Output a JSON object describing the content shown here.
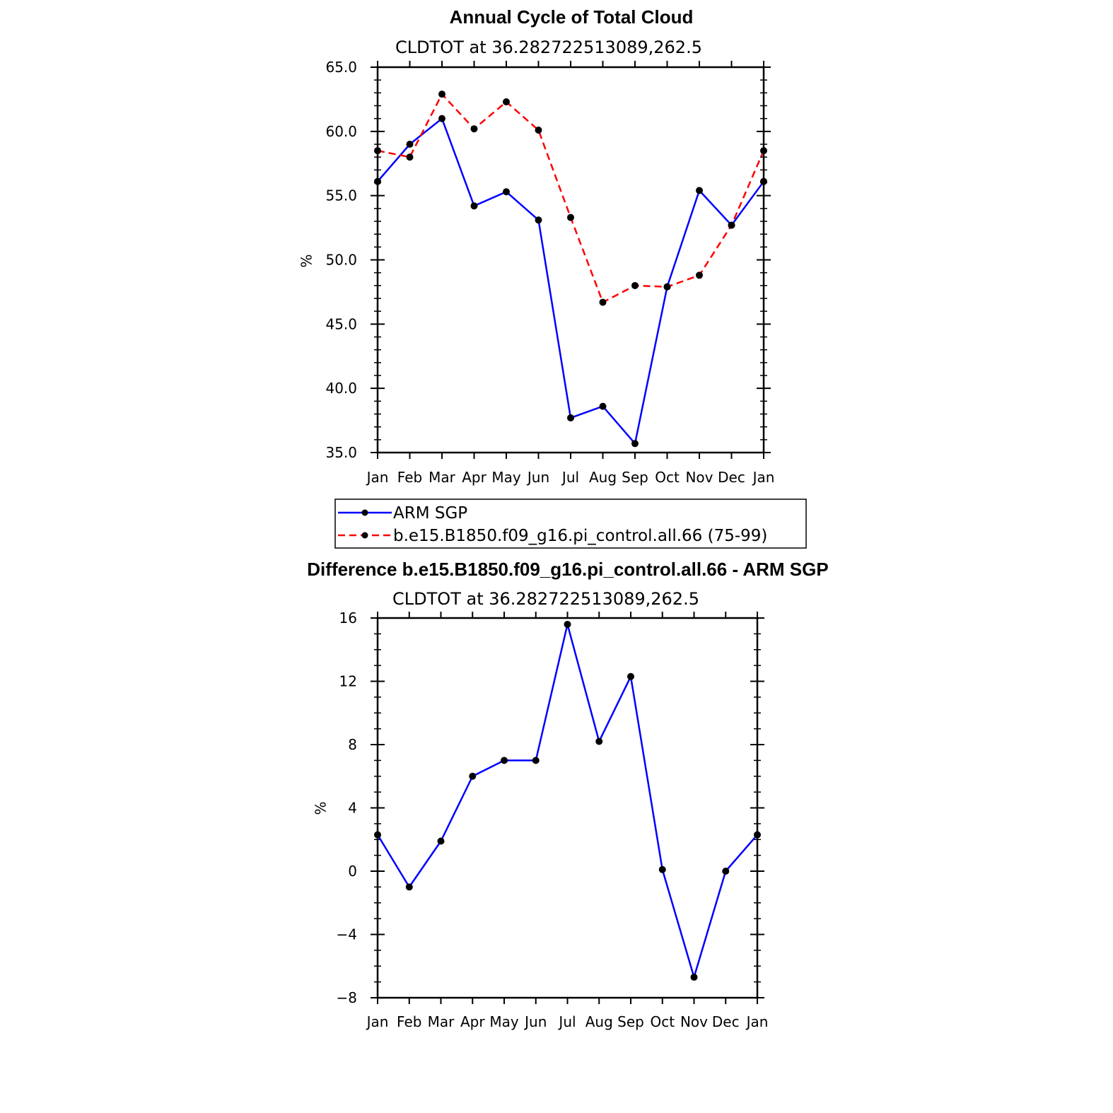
{
  "chart_data": [
    {
      "type": "line",
      "title": "Annual Cycle of Total Cloud",
      "subtitle": "CLDTOT at 36.282722513089,262.5",
      "ylabel": "%",
      "xlabel": "",
      "categories": [
        "Jan",
        "Feb",
        "Mar",
        "Apr",
        "May",
        "Jun",
        "Jul",
        "Aug",
        "Sep",
        "Oct",
        "Nov",
        "Dec",
        "Jan"
      ],
      "ylim": [
        35.0,
        65.0
      ],
      "yticks": [
        35.0,
        40.0,
        45.0,
        50.0,
        55.0,
        60.0,
        65.0
      ],
      "ytick_labels": [
        "35.0",
        "40.0",
        "45.0",
        "50.0",
        "55.0",
        "60.0",
        "65.0"
      ],
      "grid": false,
      "legend_position": "bottom",
      "series": [
        {
          "name": "ARM SGP",
          "color": "#0000ff",
          "dash": "solid",
          "marker": "dot",
          "values": [
            56.1,
            59.0,
            61.0,
            54.2,
            55.3,
            53.1,
            37.7,
            38.6,
            35.7,
            47.9,
            55.4,
            52.7,
            56.1
          ]
        },
        {
          "name": "b.e15.B1850.f09_g16.pi_control.all.66 (75-99)",
          "color": "#ff0000",
          "dash": "dashed",
          "marker": "dot",
          "values": [
            58.5,
            58.0,
            62.9,
            60.2,
            62.3,
            60.1,
            53.3,
            46.7,
            48.0,
            47.9,
            48.8,
            52.7,
            58.5
          ]
        }
      ]
    },
    {
      "type": "line",
      "title": "Difference b.e15.B1850.f09_g16.pi_control.all.66 - ARM SGP",
      "subtitle": "CLDTOT at 36.282722513089,262.5",
      "ylabel": "%",
      "xlabel": "",
      "categories": [
        "Jan",
        "Feb",
        "Mar",
        "Apr",
        "May",
        "Jun",
        "Jul",
        "Aug",
        "Sep",
        "Oct",
        "Nov",
        "Dec",
        "Jan"
      ],
      "ylim": [
        -8,
        16
      ],
      "yticks": [
        -8,
        -4,
        0,
        4,
        8,
        12,
        16
      ],
      "ytick_labels": [
        "−8",
        "−4",
        "0",
        "4",
        "8",
        "12",
        "16"
      ],
      "grid": false,
      "series": [
        {
          "color": "#0000ff",
          "dash": "solid",
          "marker": "dot",
          "values": [
            2.3,
            -1.0,
            1.9,
            6.0,
            7.0,
            7.0,
            15.6,
            8.2,
            12.3,
            0.1,
            -6.7,
            0.0,
            2.3
          ]
        }
      ]
    }
  ]
}
